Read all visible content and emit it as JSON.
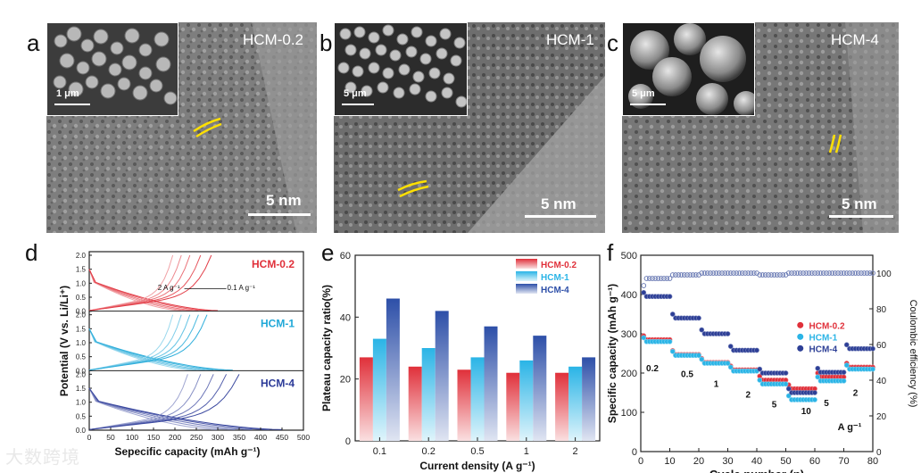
{
  "panels": {
    "a": {
      "letter": "a",
      "sample": "HCM-0.2",
      "tem_scale": "5 nm",
      "sem_scale": "1 μm"
    },
    "b": {
      "letter": "b",
      "sample": "HCM-1",
      "tem_scale": "5 nm",
      "sem_scale": "5 μm"
    },
    "c": {
      "letter": "c",
      "sample": "HCM-4",
      "tem_scale": "5 nm",
      "sem_scale": "5 μm"
    },
    "d": {
      "letter": "d"
    },
    "e": {
      "letter": "e"
    },
    "f": {
      "letter": "f"
    }
  },
  "watermark": "大数跨境",
  "chart_data": [
    {
      "id": "d",
      "type": "line",
      "title": "",
      "xlabel": "Sepecific capacity (mAh g⁻¹)",
      "ylabel": "Potential (V vs. Li/Li⁺)",
      "xlim": [
        0,
        500
      ],
      "xticks": [
        "0",
        "50",
        "100",
        "150",
        "200",
        "250",
        "300",
        "350",
        "400",
        "450",
        "500"
      ],
      "subplots": [
        {
          "name": "HCM-0.2",
          "color": "#e0303a",
          "ylim": [
            0,
            2.0
          ],
          "yticks": [
            "0.0",
            "0.5",
            "1.0",
            "1.5",
            "2.0"
          ],
          "annotations": [
            "2 A g⁻¹",
            "0.1 A g⁻¹"
          ],
          "discharge_end": [
            215,
            235,
            255,
            280,
            300
          ],
          "charge_end": [
            195,
            215,
            235,
            260,
            285
          ]
        },
        {
          "name": "HCM-1",
          "color": "#1fa8d8",
          "ylim": [
            0,
            2.0
          ],
          "yticks": [
            "0.0",
            "0.5",
            "1.0",
            "1.5",
            "2.0"
          ],
          "discharge_end": [
            250,
            270,
            290,
            315,
            335
          ],
          "charge_end": [
            195,
            215,
            235,
            255,
            275
          ]
        },
        {
          "name": "HCM-4",
          "color": "#2b3a98",
          "ylim": [
            0,
            2.0
          ],
          "yticks": [
            "0.0",
            "0.5",
            "1.0",
            "1.5",
            "2.0"
          ],
          "discharge_end": [
            300,
            340,
            380,
            420,
            450
          ],
          "charge_end": [
            230,
            260,
            290,
            320,
            350
          ]
        }
      ]
    },
    {
      "id": "e",
      "type": "bar",
      "title": "",
      "xlabel": "Current density (A g⁻¹)",
      "ylabel": "Plateau capacity ratio(%)",
      "ylim": [
        0,
        60
      ],
      "yticks": [
        "0",
        "20",
        "40",
        "60"
      ],
      "categories": [
        "0.1",
        "0.2",
        "0.5",
        "1",
        "2"
      ],
      "series": [
        {
          "name": "HCM-0.2",
          "color": "#e0303a",
          "values": [
            27,
            24,
            23,
            22,
            22
          ]
        },
        {
          "name": "HCM-1",
          "color": "#2ab4e6",
          "values": [
            33,
            30,
            27,
            26,
            24
          ]
        },
        {
          "name": "HCM-4",
          "color": "#2d4fa8",
          "values": [
            46,
            42,
            37,
            34,
            27
          ]
        }
      ]
    },
    {
      "id": "f",
      "type": "scatter",
      "title": "",
      "xlabel": "Cycle number (n)",
      "ylabel": "Specific capacity (mAh g⁻¹)",
      "y2label": "Coulombic efficiency (%)",
      "xlim": [
        0,
        80
      ],
      "ylim": [
        0,
        500
      ],
      "y2lim": [
        0,
        110
      ],
      "xticks": [
        "0",
        "10",
        "20",
        "30",
        "40",
        "50",
        "60",
        "70",
        "80"
      ],
      "yticks": [
        "0",
        "100",
        "200",
        "300",
        "400",
        "500"
      ],
      "y2ticks": [
        "0",
        "20",
        "40",
        "60",
        "80",
        "100"
      ],
      "rate_labels": [
        "0.2",
        "0.5",
        "1",
        "2",
        "5",
        "10",
        "5",
        "2"
      ],
      "unit_label": "A g⁻¹",
      "series": [
        {
          "name": "HCM-0.2",
          "color": "#e0303a",
          "segments": [
            285,
            247,
            227,
            208,
            182,
            160,
            190,
            215
          ]
        },
        {
          "name": "HCM-1",
          "color": "#2ab4e6",
          "segments": [
            280,
            245,
            225,
            205,
            172,
            132,
            180,
            210
          ]
        },
        {
          "name": "HCM-4",
          "color": "#2d3f96",
          "segments": [
            395,
            340,
            300,
            258,
            200,
            150,
            202,
            262
          ]
        }
      ],
      "coulombic_efficiency": [
        97,
        99,
        100,
        100,
        99,
        100,
        100,
        100
      ]
    }
  ]
}
